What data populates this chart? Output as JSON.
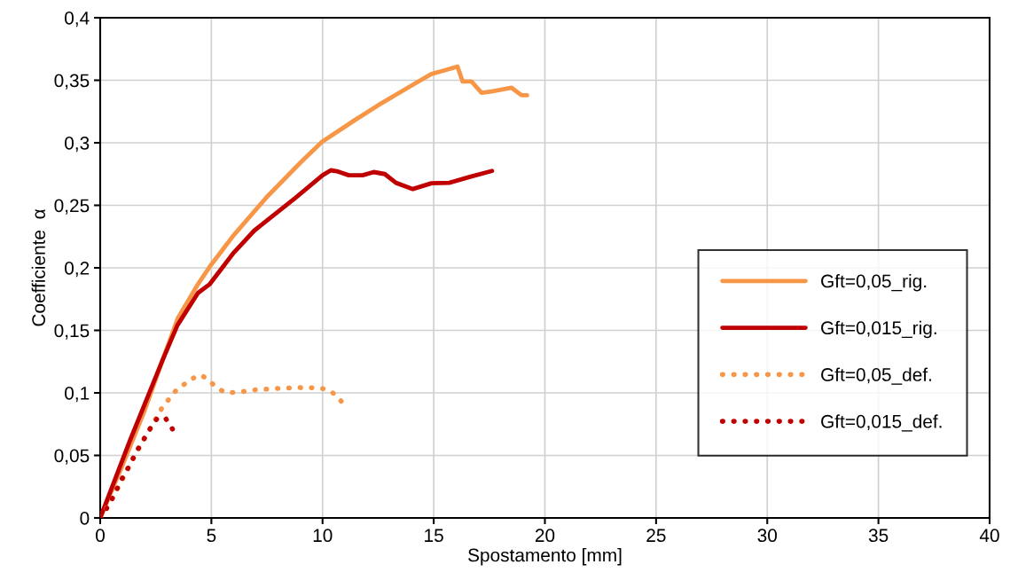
{
  "chart_data": {
    "type": "line",
    "xlabel": "Spostamento [mm]",
    "ylabel": "Coefficiente  α",
    "xlim": [
      0,
      40
    ],
    "xticks": [
      0,
      5,
      10,
      15,
      20,
      25,
      30,
      35,
      40
    ],
    "ylim": [
      0,
      0.4
    ],
    "yticks": [
      {
        "value": 0,
        "label": "0"
      },
      {
        "value": 0.05,
        "label": "0,05"
      },
      {
        "value": 0.1,
        "label": "0,1"
      },
      {
        "value": 0.15,
        "label": "0,15"
      },
      {
        "value": 0.2,
        "label": "0,2"
      },
      {
        "value": 0.25,
        "label": "0,25"
      },
      {
        "value": 0.3,
        "label": "0,3"
      },
      {
        "value": 0.35,
        "label": "0,35"
      },
      {
        "value": 0.4,
        "label": "0,4"
      }
    ],
    "grid": true,
    "legend": "right",
    "marker": "none",
    "series": [
      {
        "name": "Gft=0,05_rig.",
        "color": "#f79646",
        "line_style": "solid",
        "x": [
          0,
          1,
          2,
          2.8,
          3.5,
          4.4,
          4.93,
          6,
          7.46,
          9,
          9.97,
          11.44,
          12.5,
          14.1,
          14.9,
          15.5,
          16.07,
          16.3,
          16.7,
          17.15,
          17.6,
          18.5,
          18.95,
          19.2
        ],
        "values": [
          0,
          0.042,
          0.086,
          0.126,
          0.16,
          0.187,
          0.201,
          0.226,
          0.256,
          0.284,
          0.3007,
          0.318,
          0.33,
          0.3468,
          0.355,
          0.358,
          0.361,
          0.349,
          0.349,
          0.34,
          0.341,
          0.344,
          0.338,
          0.338
        ]
      },
      {
        "name": "Gft=0,015_rig.",
        "color": "#c00000",
        "line_style": "solid",
        "x": [
          0,
          1.34,
          2.8,
          3.47,
          4.4,
          4.93,
          6,
          6.93,
          8.78,
          10,
          10.37,
          10.7,
          11.18,
          11.8,
          12.3,
          12.8,
          13.3,
          14.06,
          14.9,
          15.7,
          16.63,
          17.62
        ],
        "values": [
          0,
          0.062,
          0.126,
          0.154,
          0.18,
          0.187,
          0.212,
          0.2298,
          0.256,
          0.274,
          0.278,
          0.277,
          0.274,
          0.274,
          0.2766,
          0.275,
          0.268,
          0.263,
          0.2676,
          0.268,
          0.2728,
          0.2775
        ]
      },
      {
        "name": "Gft=0,05_def.",
        "color": "#f79646",
        "line_style": "dotted",
        "x": [
          0,
          0.5,
          1,
          1.5,
          2,
          2.3,
          2.55,
          2.78,
          3.36,
          4.1,
          4.55,
          4.9,
          5.26,
          5.66,
          6.13,
          7.06,
          7.99,
          8.94,
          9.89,
          10.34,
          10.71,
          10.98
        ],
        "values": [
          0,
          0.014,
          0.031,
          0.048,
          0.064,
          0.073,
          0.081,
          0.088,
          0.101,
          0.1113,
          0.1142,
          0.1097,
          0.1038,
          0.1002,
          0.1004,
          0.1026,
          0.1036,
          0.1042,
          0.104,
          0.1017,
          0.0965,
          0.0898
        ]
      },
      {
        "name": "Gft=0,015_def.",
        "color": "#c00000",
        "line_style": "dotted",
        "x": [
          0,
          0.27,
          0.5,
          0.72,
          0.94,
          1.16,
          1.38,
          1.6,
          1.83,
          2.07,
          2.3,
          2.58,
          2.93,
          3.18,
          3.43
        ],
        "values": [
          0,
          0.007,
          0.014,
          0.022,
          0.03,
          0.037,
          0.044,
          0.052,
          0.059,
          0.066,
          0.073,
          0.08,
          0.08,
          0.073,
          0.066
        ]
      }
    ]
  }
}
